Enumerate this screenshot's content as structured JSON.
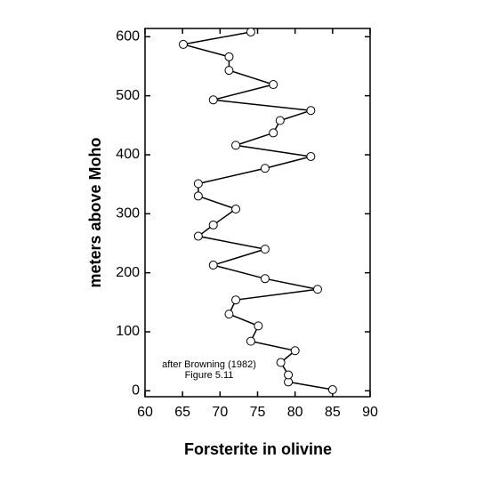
{
  "chart_data": {
    "type": "line",
    "x_label": "Forsterite in olivine",
    "y_label": "meters above Moho",
    "annotations": [
      "after Browning (1982)",
      "Figure 5.11"
    ],
    "xlim": [
      60,
      90
    ],
    "xticks": [
      60,
      65,
      70,
      75,
      80,
      85,
      90
    ],
    "ylim": [
      -10,
      614
    ],
    "yticks": [
      0,
      100,
      200,
      300,
      400,
      500,
      600
    ],
    "grid": false,
    "series": [
      {
        "color": "#000000",
        "x": [
          85.0,
          79.1,
          79.1,
          78.1,
          80.0,
          74.1,
          75.1,
          71.2,
          72.1,
          83.0,
          76.0,
          69.1,
          76.0,
          67.1,
          69.1,
          72.1,
          67.1,
          67.1,
          76.0,
          82.1,
          72.1,
          77.1,
          78.0,
          82.1,
          69.1,
          77.1,
          71.2,
          71.2,
          65.1,
          74.1
        ],
        "values": [
          2,
          15,
          27,
          48,
          68,
          84,
          110,
          130,
          154,
          172,
          190,
          213,
          240,
          262,
          281,
          308,
          330,
          351,
          377,
          397,
          416,
          437,
          458,
          475,
          493,
          519,
          543,
          566,
          587,
          608
        ]
      }
    ]
  }
}
